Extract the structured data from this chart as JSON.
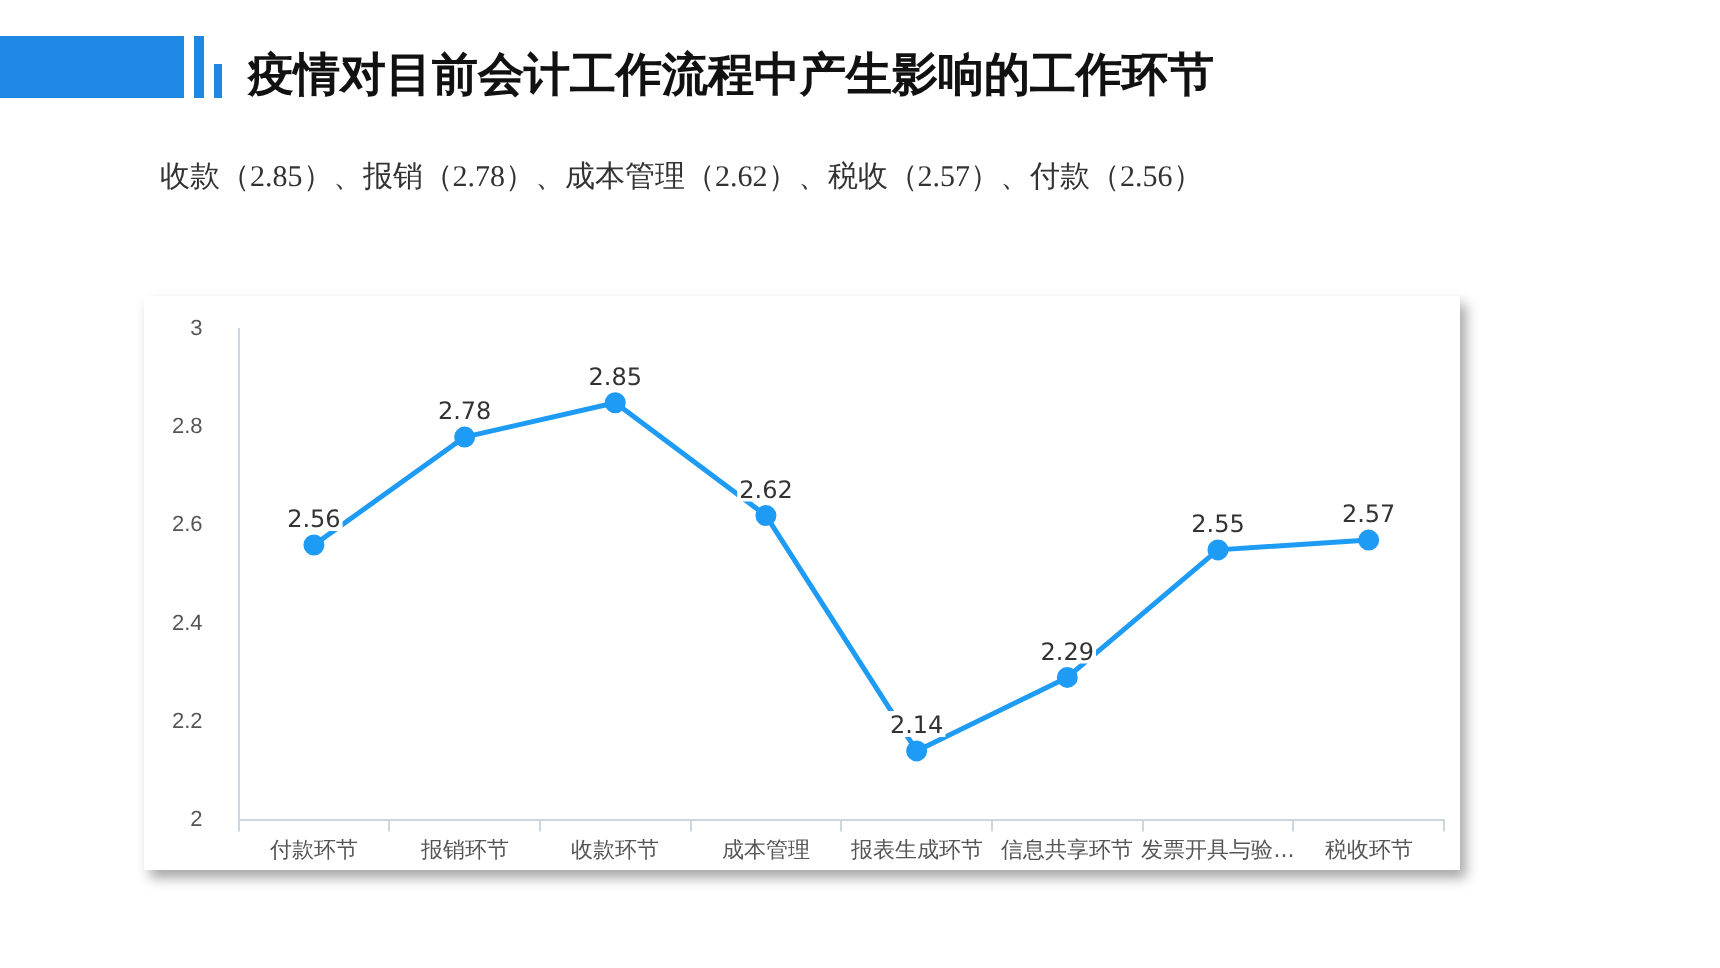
{
  "chart_data": {
    "type": "line",
    "title": "疫情对目前会计工作流程中产生影响的工作环节",
    "subtitle": "收款（2.85）、报销（2.78）、成本管理（2.62）、税收（2.57）、付款（2.56）",
    "categories": [
      "付款环节",
      "报销环节",
      "收款环节",
      "成本管理",
      "报表生成环节",
      "信息共享环节",
      "发票开具与验...",
      "税收环节"
    ],
    "series": [
      {
        "color": "#1e9bf5",
        "values": [
          2.56,
          2.78,
          2.85,
          2.62,
          2.14,
          2.29,
          2.55,
          2.57
        ]
      }
    ],
    "ylim": [
      2,
      3
    ],
    "yticks": [
      2,
      2.2,
      2.4,
      2.6,
      2.8,
      3
    ],
    "grid": false,
    "legend": false,
    "marker": "circle",
    "line_style": "solid",
    "data_labels": true
  }
}
